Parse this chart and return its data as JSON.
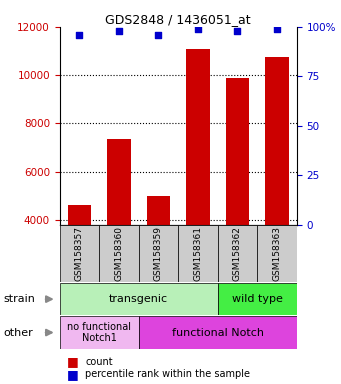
{
  "title": "GDS2848 / 1436051_at",
  "samples": [
    "GSM158357",
    "GSM158360",
    "GSM158359",
    "GSM158361",
    "GSM158362",
    "GSM158363"
  ],
  "counts": [
    4620,
    7350,
    4970,
    11100,
    9900,
    10750
  ],
  "percentiles": [
    96,
    98,
    96,
    99,
    98,
    99
  ],
  "bar_color": "#cc0000",
  "dot_color": "#0000cc",
  "ylim_left": [
    3800,
    12000
  ],
  "ylim_right": [
    0,
    100
  ],
  "yticks_left": [
    4000,
    6000,
    8000,
    10000,
    12000
  ],
  "yticks_right": [
    0,
    25,
    50,
    75,
    100
  ],
  "strain_transgenic": [
    0,
    1,
    2,
    3
  ],
  "strain_wildtype": [
    4,
    5
  ],
  "other_nofunc": [
    0,
    1
  ],
  "other_func": [
    2,
    3,
    4,
    5
  ],
  "strain_transgenic_label": "transgenic",
  "strain_wildtype_label": "wild type",
  "other_nofunc_label": "no functional\nNotch1",
  "other_func_label": "functional Notch",
  "strain_color_transgenic": "#b8f0b8",
  "strain_color_wildtype": "#44ee44",
  "other_color_nofunc": "#f0b8f0",
  "other_color_func": "#dd44dd",
  "tick_label_color_left": "#cc0000",
  "tick_label_color_right": "#0000cc",
  "bar_bottom": 3800,
  "legend_count_label": "count",
  "legend_pct_label": "percentile rank within the sample",
  "xlabel_area_color": "#cccccc",
  "bg_color": "#ffffff"
}
